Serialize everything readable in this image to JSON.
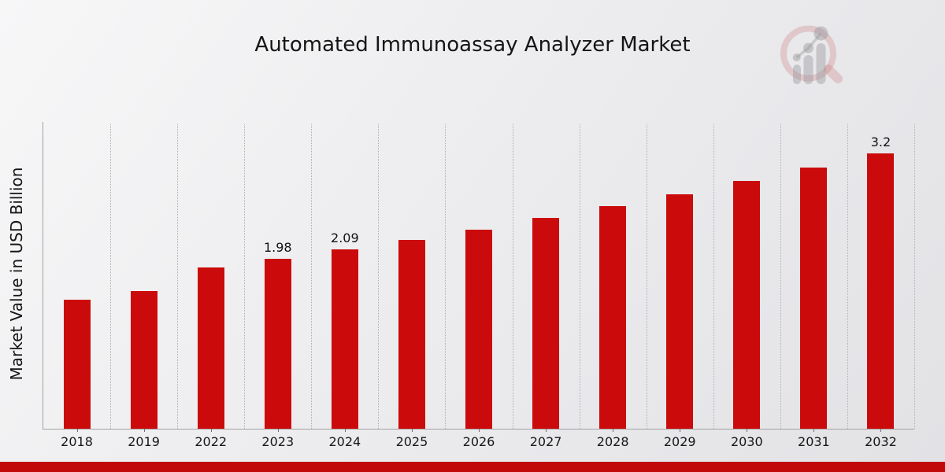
{
  "page": {
    "title": "Automated Immunoassay Analyzer Market",
    "footer_accent_color": "#c20909"
  },
  "branding": {
    "logo_icon": "magnifier-bar-chart-watermark-logo"
  },
  "chart_data": {
    "type": "bar",
    "title": "Automated Immunoassay Analyzer Market",
    "xlabel": "",
    "ylabel": "Market Value in USD Billion",
    "categories": [
      "2018",
      "2019",
      "2022",
      "2023",
      "2024",
      "2025",
      "2026",
      "2027",
      "2028",
      "2029",
      "2030",
      "2031",
      "2032"
    ],
    "values": [
      1.5,
      1.6,
      1.88,
      1.98,
      2.09,
      2.2,
      2.32,
      2.45,
      2.59,
      2.73,
      2.88,
      3.04,
      3.2
    ],
    "data_labels": {
      "2023": "1.98",
      "2024": "2.09",
      "2032": "3.2"
    },
    "bar_color": "#cb0b0b",
    "ylim": [
      0,
      3.57
    ],
    "grid": "vertical-dotted",
    "legend": "none",
    "y_tick_labels": "none"
  }
}
